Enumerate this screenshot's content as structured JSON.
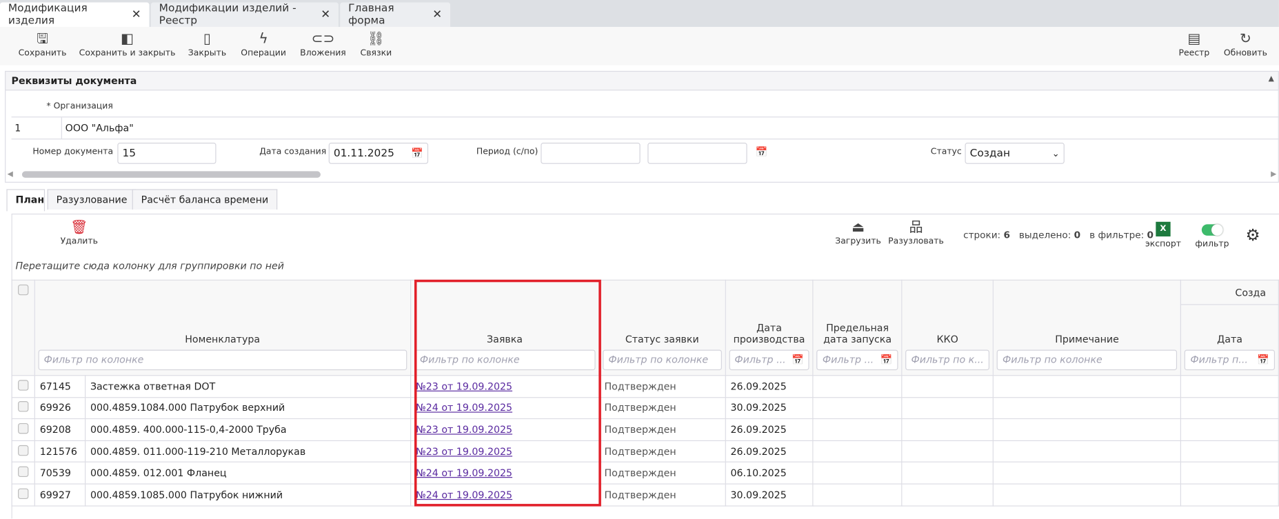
{
  "tabs": [
    {
      "label": "Модификация изделия",
      "active": true
    },
    {
      "label": "Модификации изделий - Реестр",
      "active": false
    },
    {
      "label": "Главная форма",
      "active": false
    }
  ],
  "toolbar": {
    "left": [
      {
        "label": "Сохранить",
        "icon": "save-icon"
      },
      {
        "label": "Сохранить и закрыть",
        "icon": "save-close-icon"
      },
      {
        "label": "Закрыть",
        "icon": "door-icon"
      },
      {
        "label": "Операции",
        "icon": "lightning-icon"
      },
      {
        "label": "Вложения",
        "icon": "paperclip-icon"
      },
      {
        "label": "Связки",
        "icon": "link-icon"
      }
    ],
    "right": [
      {
        "label": "Реестр",
        "icon": "registry-icon"
      },
      {
        "label": "Обновить",
        "icon": "refresh-icon"
      }
    ]
  },
  "details": {
    "title": "Реквизиты документа",
    "org_label": "* Организация",
    "org_code": "1",
    "org_name": "ООО \"Альфа\"",
    "doc_number_label": "Номер документа",
    "doc_number": "15",
    "created_label": "Дата создания",
    "created": "01.11.2025",
    "period_label": "Период (с/по)",
    "period_from": "",
    "period_to": "",
    "status_label": "Статус",
    "status": "Создан"
  },
  "subtabs": [
    {
      "label": "План",
      "active": true
    },
    {
      "label": "Разузлование"
    },
    {
      "label": "Расчёт баланса времени"
    }
  ],
  "grid": {
    "delete_label": "Удалить",
    "load_label": "Загрузить",
    "explode_label": "Разузловать",
    "rows_label": "строки:",
    "rows_count": "6",
    "selected_label": "выделено:",
    "selected_count": "0",
    "filtered_label": "в фильтре:",
    "filtered_count": "0",
    "export_label": "экспорт",
    "export_icon_text": "X",
    "filter_label": "фильтр",
    "filter_on": true,
    "group_hint": "Перетащите сюда колонку для группировки по ней",
    "filter_placeholder": "Фильтр по колонке",
    "filter_placeholder_short": "Фильтр ...",
    "filter_placeholder_kko": "Фильтр по к...",
    "filter_placeholder_date": "Фильтр п...",
    "columns": {
      "nomenclature": "Номенклатура",
      "request": "Заявка",
      "request_status": "Статус заявки",
      "prod_date": "Дата производства",
      "limit_date": "Предельная дата запуска",
      "kko": "ККО",
      "note": "Примечание",
      "created_group": "Созда",
      "date": "Дата"
    },
    "rows": [
      {
        "code": "67145",
        "name": "Застежка ответная DOT",
        "request": "№23 от 19.09.2025",
        "status": "Подтвержден",
        "prod_date": "26.09.2025"
      },
      {
        "code": "69926",
        "name": "000.4859.1084.000 Патрубок верхний",
        "request": "№24 от 19.09.2025",
        "status": "Подтвержден",
        "prod_date": "30.09.2025"
      },
      {
        "code": "69208",
        "name": "000.4859. 400.000-115-0,4-2000 Труба",
        "request": "№23 от 19.09.2025",
        "status": "Подтвержден",
        "prod_date": "26.09.2025"
      },
      {
        "code": "121576",
        "name": "000.4859. 011.000-119-210 Металлорукав",
        "request": "№23 от 19.09.2025",
        "status": "Подтвержден",
        "prod_date": "26.09.2025"
      },
      {
        "code": "70539",
        "name": "000.4859. 012.001 Фланец",
        "request": "№24 от 19.09.2025",
        "status": "Подтвержден",
        "prod_date": "06.10.2025"
      },
      {
        "code": "69927",
        "name": "000.4859.1085.000 Патрубок нижний",
        "request": "№24 от 19.09.2025",
        "status": "Подтвержден",
        "prod_date": "30.09.2025"
      }
    ]
  },
  "colors": {
    "highlight": "#e2202a",
    "link": "#5a2aa0",
    "toggle": "#3dbb6b",
    "excel": "#1d7a3e",
    "delete": "#d9303a"
  }
}
